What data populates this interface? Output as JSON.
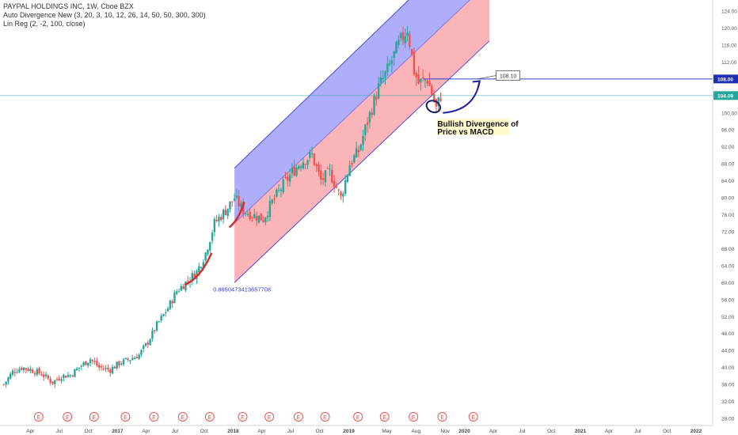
{
  "legend": {
    "symbol_line": "PAYPAL HOLDINGS INC, 1W, Cboe BZX",
    "indicator_1": "Auto Divergence New (3, 20, 3, 10, 12, 26, 14, 50, 50, 300, 300)",
    "indicator_2": "Lin Reg (2, -2, 100, close)"
  },
  "annotations": {
    "divergence_line1": "Bullish Divergence of",
    "divergence_line2": "Price vs MACD",
    "callout": "108.10",
    "pearson": "0.8650473413657708"
  },
  "colors": {
    "up": "#26a69a",
    "down": "#ef5350",
    "upper_channel": "#7c7cf7",
    "lower_channel": "#f99ca0",
    "channel_line": "#3a3ae0",
    "level_line": "#2f3fd6",
    "price_line": "#26a69a",
    "earnings": "#ef5350",
    "divergence_curve": "#d32f2f"
  },
  "chart_data": {
    "type": "candlestick",
    "title": "PAYPAL HOLDINGS INC, 1W, Cboe BZX",
    "y_axis": {
      "min": 28,
      "max": 124,
      "ticks": [
        28,
        32,
        36,
        40,
        44,
        48,
        52,
        56,
        60,
        64,
        68,
        72,
        76,
        80,
        84,
        88,
        92,
        96,
        100,
        104,
        108,
        112,
        116,
        120,
        124
      ]
    },
    "x_axis": {
      "ticks": [
        {
          "label": "Apr",
          "date": "2016-04-01"
        },
        {
          "label": "Jul",
          "date": "2016-07-01"
        },
        {
          "label": "Oct",
          "date": "2016-10-01"
        },
        {
          "label": "2017",
          "date": "2017-01-01"
        },
        {
          "label": "Apr",
          "date": "2017-04-01"
        },
        {
          "label": "Jul",
          "date": "2017-07-01"
        },
        {
          "label": "Oct",
          "date": "2017-10-01"
        },
        {
          "label": "2018",
          "date": "2018-01-01"
        },
        {
          "label": "Apr",
          "date": "2018-04-01"
        },
        {
          "label": "Jul",
          "date": "2018-07-01"
        },
        {
          "label": "Oct",
          "date": "2018-10-01"
        },
        {
          "label": "2019",
          "date": "2019-01-01"
        },
        {
          "label": "May",
          "date": "2019-05-01"
        },
        {
          "label": "Aug",
          "date": "2019-08-01"
        },
        {
          "label": "Nov",
          "date": "2019-11-01"
        },
        {
          "label": "2020",
          "date": "2020-01-01"
        },
        {
          "label": "Apr",
          "date": "2020-04-01"
        },
        {
          "label": "Jul",
          "date": "2020-07-01"
        },
        {
          "label": "Oct",
          "date": "2020-10-01"
        },
        {
          "label": "2021",
          "date": "2021-01-01"
        },
        {
          "label": "Apr",
          "date": "2021-04-01"
        },
        {
          "label": "Jul",
          "date": "2021-07-01"
        },
        {
          "label": "Oct",
          "date": "2021-10-01"
        },
        {
          "label": "2022",
          "date": "2022-01-01"
        }
      ]
    },
    "price_path": [
      {
        "date": "2016-01-08",
        "close": 36.0
      },
      {
        "date": "2016-02-05",
        "close": 39.0
      },
      {
        "date": "2016-03-04",
        "close": 40.0
      },
      {
        "date": "2016-04-01",
        "close": 39.5
      },
      {
        "date": "2016-05-06",
        "close": 38.5
      },
      {
        "date": "2016-06-10",
        "close": 36.5
      },
      {
        "date": "2016-07-08",
        "close": 38.0
      },
      {
        "date": "2016-08-05",
        "close": 38.2
      },
      {
        "date": "2016-09-09",
        "close": 40.5
      },
      {
        "date": "2016-10-07",
        "close": 42.0
      },
      {
        "date": "2016-11-04",
        "close": 40.0
      },
      {
        "date": "2016-12-09",
        "close": 39.5
      },
      {
        "date": "2017-01-06",
        "close": 41.0
      },
      {
        "date": "2017-02-10",
        "close": 42.0
      },
      {
        "date": "2017-03-10",
        "close": 43.0
      },
      {
        "date": "2017-04-07",
        "close": 46.0
      },
      {
        "date": "2017-05-05",
        "close": 50.0
      },
      {
        "date": "2017-06-09",
        "close": 54.0
      },
      {
        "date": "2017-07-07",
        "close": 58.0
      },
      {
        "date": "2017-08-04",
        "close": 60.0
      },
      {
        "date": "2017-09-08",
        "close": 62.5
      },
      {
        "date": "2017-10-06",
        "close": 67.0
      },
      {
        "date": "2017-11-03",
        "close": 74.0
      },
      {
        "date": "2017-12-08",
        "close": 77.0
      },
      {
        "date": "2018-01-05",
        "close": 80.0
      },
      {
        "date": "2018-02-02",
        "close": 77.0
      },
      {
        "date": "2018-03-02",
        "close": 76.0
      },
      {
        "date": "2018-04-06",
        "close": 75.0
      },
      {
        "date": "2018-05-04",
        "close": 79.0
      },
      {
        "date": "2018-06-08",
        "close": 83.0
      },
      {
        "date": "2018-07-06",
        "close": 86.0
      },
      {
        "date": "2018-08-03",
        "close": 88.5
      },
      {
        "date": "2018-09-07",
        "close": 90.0
      },
      {
        "date": "2018-10-05",
        "close": 84.0
      },
      {
        "date": "2018-11-02",
        "close": 86.0
      },
      {
        "date": "2018-12-07",
        "close": 80.0
      },
      {
        "date": "2019-01-04",
        "close": 88.0
      },
      {
        "date": "2019-02-01",
        "close": 91.0
      },
      {
        "date": "2019-03-01",
        "close": 98.0
      },
      {
        "date": "2019-04-05",
        "close": 106.0
      },
      {
        "date": "2019-05-03",
        "close": 110.0
      },
      {
        "date": "2019-06-07",
        "close": 116.0
      },
      {
        "date": "2019-07-05",
        "close": 120.0
      },
      {
        "date": "2019-07-26",
        "close": 110.0
      },
      {
        "date": "2019-08-09",
        "close": 107.0
      },
      {
        "date": "2019-09-06",
        "close": 108.0
      },
      {
        "date": "2019-10-04",
        "close": 101.0
      },
      {
        "date": "2019-10-18",
        "close": 104.09
      }
    ],
    "regression_channel": {
      "start": {
        "date": "2018-01-05",
        "upper": 87.0,
        "mid": 74.0,
        "lower": 60.0
      },
      "end": {
        "date": "2020-03-20",
        "upper": 145.0,
        "mid": 131.0,
        "lower": 117.0
      },
      "pearson": 0.8650473413657708
    },
    "horizontal_levels": [
      {
        "value": 108.0,
        "label": "108.00"
      },
      {
        "value": 104.09,
        "label": "104.09"
      }
    ],
    "earnings_markers": [
      "2016-04-27",
      "2016-07-27",
      "2016-10-19",
      "2017-01-26",
      "2017-04-26",
      "2017-07-26",
      "2017-10-19",
      "2018-01-31",
      "2018-04-25",
      "2018-07-26",
      "2018-10-18",
      "2019-01-30",
      "2019-04-24",
      "2019-07-24",
      "2019-10-23",
      "2020-01-29"
    ]
  }
}
